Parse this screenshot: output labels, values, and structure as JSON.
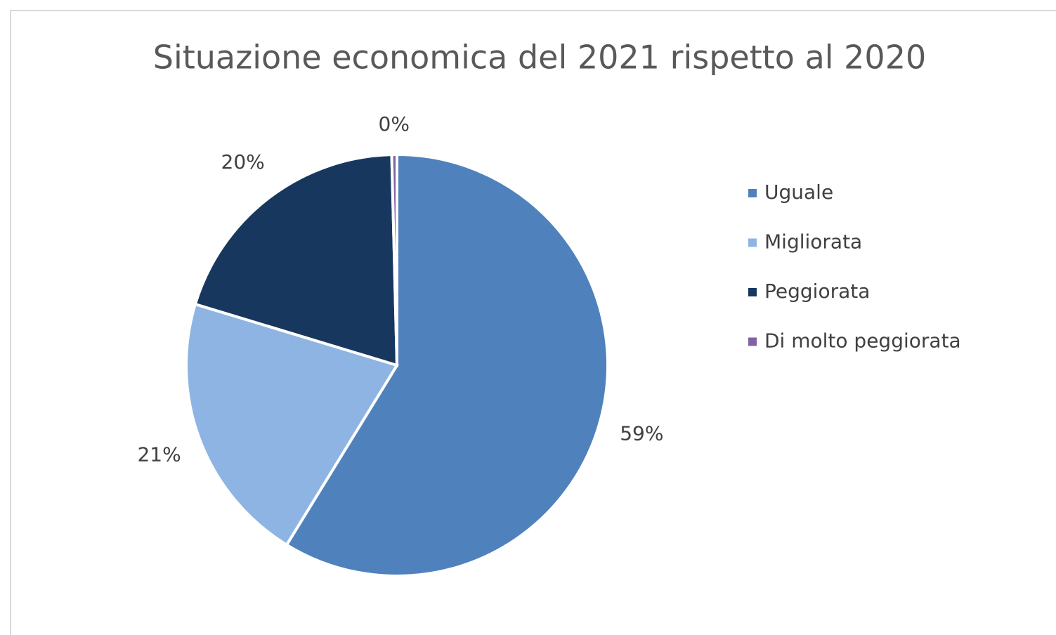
{
  "chart_data": {
    "type": "pie",
    "title": "Situazione economica del 2021 rispetto al 2020",
    "categories": [
      "Uguale",
      "Migliorata",
      "Peggiorata",
      "Di molto peggiorata"
    ],
    "values": [
      59,
      21,
      20,
      0.4
    ],
    "value_labels": [
      "59%",
      "21%",
      "20%",
      "0%"
    ],
    "colors": [
      "#4f81bd",
      "#8eb4e3",
      "#17375e",
      "#8064a2"
    ],
    "legend": "right"
  }
}
